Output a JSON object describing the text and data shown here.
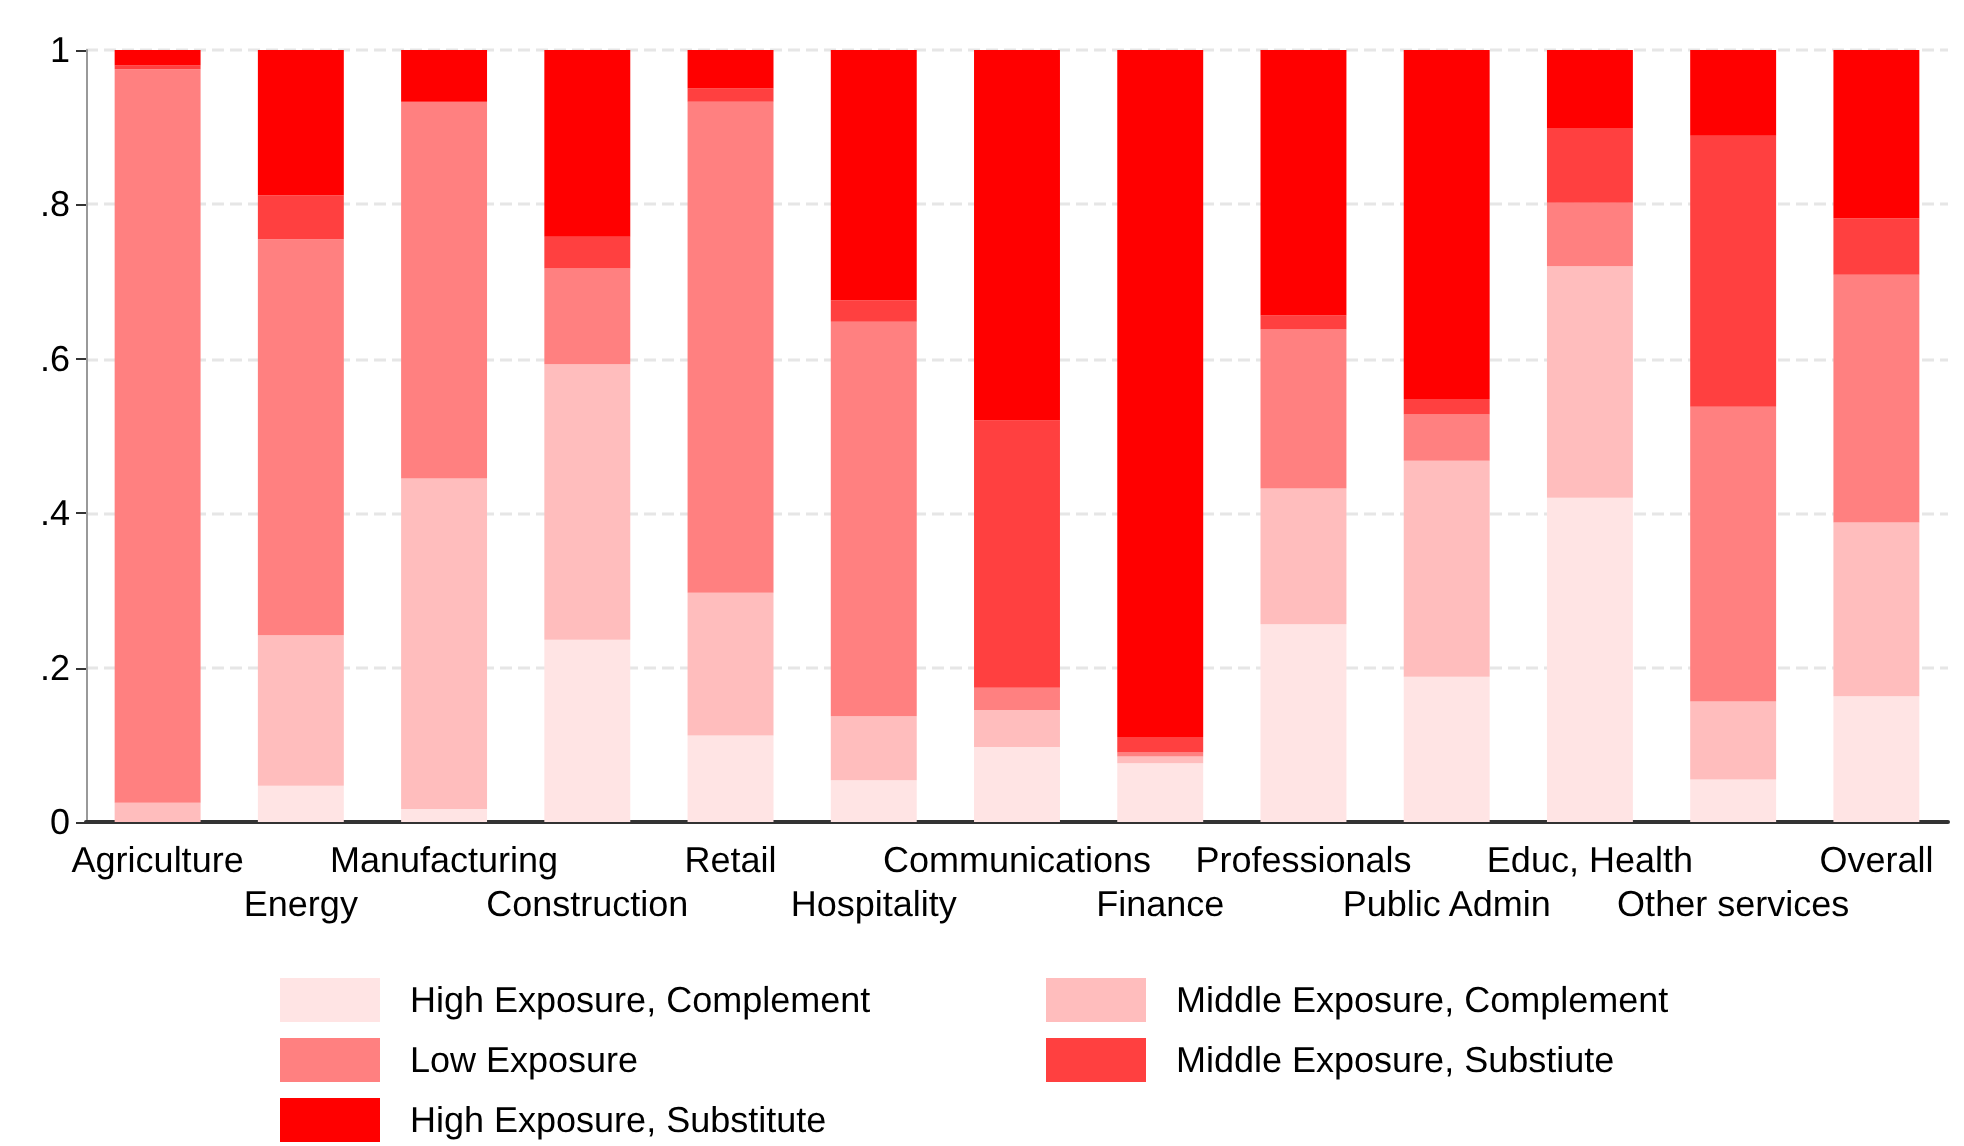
{
  "chart_data": {
    "type": "bar",
    "stacked": true,
    "categories": [
      "Agriculture",
      "Energy",
      "Manufacturing",
      "Construction",
      "Retail",
      "Hospitality",
      "Communications",
      "Finance",
      "Professionals",
      "Public Admin",
      "Educ, Health",
      "Other services",
      "Overall"
    ],
    "series": [
      {
        "name": "High Exposure, Complement",
        "color": "#ffe4e4",
        "values": [
          0,
          0.047,
          0.017,
          0.236,
          0.112,
          0.054,
          0.097,
          0.076,
          0.256,
          0.188,
          0.42,
          0.055,
          0.163
        ]
      },
      {
        "name": "Middle Exposure, Complement",
        "color": "#ffbdbd",
        "values": [
          0.025,
          0.195,
          0.428,
          0.357,
          0.185,
          0.083,
          0.048,
          0.009,
          0.176,
          0.28,
          0.3,
          0.101,
          0.225
        ]
      },
      {
        "name": "Low Exposure",
        "color": "#ff8080",
        "values": [
          0.95,
          0.513,
          0.488,
          0.124,
          0.636,
          0.511,
          0.029,
          0.005,
          0.206,
          0.06,
          0.082,
          0.382,
          0.321
        ]
      },
      {
        "name": "Middle Exposure, Substiute",
        "color": "#ff4040",
        "values": [
          0.005,
          0.057,
          0,
          0.041,
          0.017,
          0.028,
          0.346,
          0.02,
          0.018,
          0.02,
          0.097,
          0.351,
          0.073
        ]
      },
      {
        "name": "High Exposure, Substitute",
        "color": "#ff0000",
        "values": [
          0.02,
          0.188,
          0.067,
          0.242,
          0.05,
          0.324,
          0.48,
          0.89,
          0.344,
          0.452,
          0.101,
          0.111,
          0.218
        ]
      }
    ],
    "ylim": [
      0,
      1
    ],
    "yticks": [
      0,
      {
        "value": 0.2,
        "label": ".2"
      },
      {
        "value": 0.4,
        "label": ".4"
      },
      {
        "value": 0.6,
        "label": ".6"
      },
      {
        "value": 0.8,
        "label": ".8"
      },
      1
    ],
    "grid": "y",
    "legend": "bottom"
  }
}
